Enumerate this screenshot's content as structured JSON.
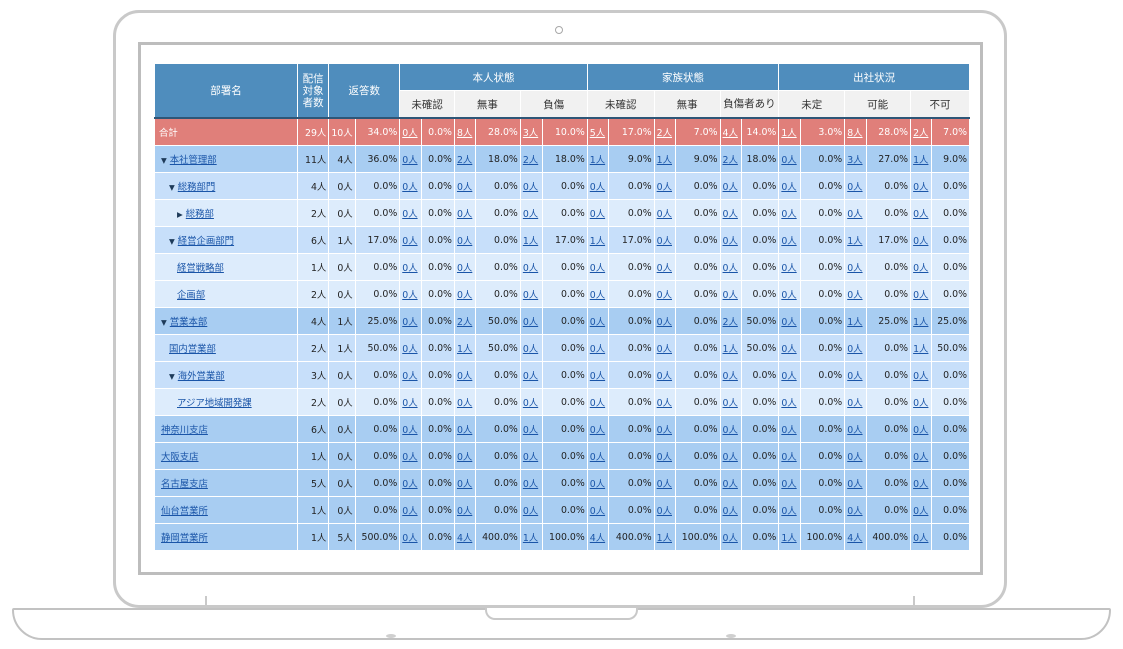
{
  "header": {
    "dept": "部署名",
    "target": "配信対象者数",
    "answers": "返答数",
    "groups": [
      {
        "label": "本人状態",
        "subs": [
          "未確認",
          "無事",
          "負傷"
        ]
      },
      {
        "label": "家族状態",
        "subs": [
          "未確認",
          "無事",
          "負傷者あり"
        ]
      },
      {
        "label": "出社状況",
        "subs": [
          "未定",
          "可能",
          "不可"
        ]
      }
    ]
  },
  "rows": [
    {
      "name": "合計",
      "link": false,
      "level": 0,
      "caret": "",
      "target": "29人",
      "ans_n": "10人",
      "ans_p": "34.0%",
      "cells": [
        [
          "0人",
          "0.0%"
        ],
        [
          "8人",
          "28.0%"
        ],
        [
          "3人",
          "10.0%"
        ],
        [
          "5人",
          "17.0%"
        ],
        [
          "2人",
          "7.0%"
        ],
        [
          "4人",
          "14.0%"
        ],
        [
          "1人",
          "3.0%"
        ],
        [
          "8人",
          "28.0%"
        ],
        [
          "2人",
          "7.0%"
        ]
      ]
    },
    {
      "name": "本社管理部",
      "link": true,
      "level": 1,
      "caret": "▼",
      "target": "11人",
      "ans_n": "4人",
      "ans_p": "36.0%",
      "cells": [
        [
          "0人",
          "0.0%"
        ],
        [
          "2人",
          "18.0%"
        ],
        [
          "2人",
          "18.0%"
        ],
        [
          "1人",
          "9.0%"
        ],
        [
          "1人",
          "9.0%"
        ],
        [
          "2人",
          "18.0%"
        ],
        [
          "0人",
          "0.0%"
        ],
        [
          "3人",
          "27.0%"
        ],
        [
          "1人",
          "9.0%"
        ]
      ]
    },
    {
      "name": "総務部門",
      "link": true,
      "level": 2,
      "caret": "▼",
      "target": "4人",
      "ans_n": "0人",
      "ans_p": "0.0%",
      "cells": [
        [
          "0人",
          "0.0%"
        ],
        [
          "0人",
          "0.0%"
        ],
        [
          "0人",
          "0.0%"
        ],
        [
          "0人",
          "0.0%"
        ],
        [
          "0人",
          "0.0%"
        ],
        [
          "0人",
          "0.0%"
        ],
        [
          "0人",
          "0.0%"
        ],
        [
          "0人",
          "0.0%"
        ],
        [
          "0人",
          "0.0%"
        ]
      ]
    },
    {
      "name": "総務部",
      "link": true,
      "level": 3,
      "caret": "▶",
      "target": "2人",
      "ans_n": "0人",
      "ans_p": "0.0%",
      "cells": [
        [
          "0人",
          "0.0%"
        ],
        [
          "0人",
          "0.0%"
        ],
        [
          "0人",
          "0.0%"
        ],
        [
          "0人",
          "0.0%"
        ],
        [
          "0人",
          "0.0%"
        ],
        [
          "0人",
          "0.0%"
        ],
        [
          "0人",
          "0.0%"
        ],
        [
          "0人",
          "0.0%"
        ],
        [
          "0人",
          "0.0%"
        ]
      ]
    },
    {
      "name": "経営企画部門",
      "link": true,
      "level": 2,
      "caret": "▼",
      "target": "6人",
      "ans_n": "1人",
      "ans_p": "17.0%",
      "cells": [
        [
          "0人",
          "0.0%"
        ],
        [
          "0人",
          "0.0%"
        ],
        [
          "1人",
          "17.0%"
        ],
        [
          "1人",
          "17.0%"
        ],
        [
          "0人",
          "0.0%"
        ],
        [
          "0人",
          "0.0%"
        ],
        [
          "0人",
          "0.0%"
        ],
        [
          "1人",
          "17.0%"
        ],
        [
          "0人",
          "0.0%"
        ]
      ]
    },
    {
      "name": "経営戦略部",
      "link": true,
      "level": 3,
      "caret": "",
      "target": "1人",
      "ans_n": "0人",
      "ans_p": "0.0%",
      "cells": [
        [
          "0人",
          "0.0%"
        ],
        [
          "0人",
          "0.0%"
        ],
        [
          "0人",
          "0.0%"
        ],
        [
          "0人",
          "0.0%"
        ],
        [
          "0人",
          "0.0%"
        ],
        [
          "0人",
          "0.0%"
        ],
        [
          "0人",
          "0.0%"
        ],
        [
          "0人",
          "0.0%"
        ],
        [
          "0人",
          "0.0%"
        ]
      ]
    },
    {
      "name": "企画部",
      "link": true,
      "level": 3,
      "caret": "",
      "target": "2人",
      "ans_n": "0人",
      "ans_p": "0.0%",
      "cells": [
        [
          "0人",
          "0.0%"
        ],
        [
          "0人",
          "0.0%"
        ],
        [
          "0人",
          "0.0%"
        ],
        [
          "0人",
          "0.0%"
        ],
        [
          "0人",
          "0.0%"
        ],
        [
          "0人",
          "0.0%"
        ],
        [
          "0人",
          "0.0%"
        ],
        [
          "0人",
          "0.0%"
        ],
        [
          "0人",
          "0.0%"
        ]
      ]
    },
    {
      "name": "営業本部",
      "link": true,
      "level": 1,
      "caret": "▼",
      "target": "4人",
      "ans_n": "1人",
      "ans_p": "25.0%",
      "cells": [
        [
          "0人",
          "0.0%"
        ],
        [
          "2人",
          "50.0%"
        ],
        [
          "0人",
          "0.0%"
        ],
        [
          "0人",
          "0.0%"
        ],
        [
          "0人",
          "0.0%"
        ],
        [
          "2人",
          "50.0%"
        ],
        [
          "0人",
          "0.0%"
        ],
        [
          "1人",
          "25.0%"
        ],
        [
          "1人",
          "25.0%"
        ]
      ]
    },
    {
      "name": "国内営業部",
      "link": true,
      "level": 2,
      "caret": "",
      "target": "2人",
      "ans_n": "1人",
      "ans_p": "50.0%",
      "cells": [
        [
          "0人",
          "0.0%"
        ],
        [
          "1人",
          "50.0%"
        ],
        [
          "0人",
          "0.0%"
        ],
        [
          "0人",
          "0.0%"
        ],
        [
          "0人",
          "0.0%"
        ],
        [
          "1人",
          "50.0%"
        ],
        [
          "0人",
          "0.0%"
        ],
        [
          "0人",
          "0.0%"
        ],
        [
          "1人",
          "50.0%"
        ]
      ]
    },
    {
      "name": "海外営業部",
      "link": true,
      "level": 2,
      "caret": "▼",
      "target": "3人",
      "ans_n": "0人",
      "ans_p": "0.0%",
      "cells": [
        [
          "0人",
          "0.0%"
        ],
        [
          "0人",
          "0.0%"
        ],
        [
          "0人",
          "0.0%"
        ],
        [
          "0人",
          "0.0%"
        ],
        [
          "0人",
          "0.0%"
        ],
        [
          "0人",
          "0.0%"
        ],
        [
          "0人",
          "0.0%"
        ],
        [
          "0人",
          "0.0%"
        ],
        [
          "0人",
          "0.0%"
        ]
      ]
    },
    {
      "name": "アジア地域開発課",
      "link": true,
      "level": 3,
      "caret": "",
      "target": "2人",
      "ans_n": "0人",
      "ans_p": "0.0%",
      "cells": [
        [
          "0人",
          "0.0%"
        ],
        [
          "0人",
          "0.0%"
        ],
        [
          "0人",
          "0.0%"
        ],
        [
          "0人",
          "0.0%"
        ],
        [
          "0人",
          "0.0%"
        ],
        [
          "0人",
          "0.0%"
        ],
        [
          "0人",
          "0.0%"
        ],
        [
          "0人",
          "0.0%"
        ],
        [
          "0人",
          "0.0%"
        ]
      ]
    },
    {
      "name": "神奈川支店",
      "link": true,
      "level": 1,
      "caret": "",
      "target": "6人",
      "ans_n": "0人",
      "ans_p": "0.0%",
      "cells": [
        [
          "0人",
          "0.0%"
        ],
        [
          "0人",
          "0.0%"
        ],
        [
          "0人",
          "0.0%"
        ],
        [
          "0人",
          "0.0%"
        ],
        [
          "0人",
          "0.0%"
        ],
        [
          "0人",
          "0.0%"
        ],
        [
          "0人",
          "0.0%"
        ],
        [
          "0人",
          "0.0%"
        ],
        [
          "0人",
          "0.0%"
        ]
      ]
    },
    {
      "name": "大阪支店",
      "link": true,
      "level": 1,
      "caret": "",
      "target": "1人",
      "ans_n": "0人",
      "ans_p": "0.0%",
      "cells": [
        [
          "0人",
          "0.0%"
        ],
        [
          "0人",
          "0.0%"
        ],
        [
          "0人",
          "0.0%"
        ],
        [
          "0人",
          "0.0%"
        ],
        [
          "0人",
          "0.0%"
        ],
        [
          "0人",
          "0.0%"
        ],
        [
          "0人",
          "0.0%"
        ],
        [
          "0人",
          "0.0%"
        ],
        [
          "0人",
          "0.0%"
        ]
      ]
    },
    {
      "name": "名古屋支店",
      "link": true,
      "level": 1,
      "caret": "",
      "target": "5人",
      "ans_n": "0人",
      "ans_p": "0.0%",
      "cells": [
        [
          "0人",
          "0.0%"
        ],
        [
          "0人",
          "0.0%"
        ],
        [
          "0人",
          "0.0%"
        ],
        [
          "0人",
          "0.0%"
        ],
        [
          "0人",
          "0.0%"
        ],
        [
          "0人",
          "0.0%"
        ],
        [
          "0人",
          "0.0%"
        ],
        [
          "0人",
          "0.0%"
        ],
        [
          "0人",
          "0.0%"
        ]
      ]
    },
    {
      "name": "仙台営業所",
      "link": true,
      "level": 1,
      "caret": "",
      "target": "1人",
      "ans_n": "0人",
      "ans_p": "0.0%",
      "cells": [
        [
          "0人",
          "0.0%"
        ],
        [
          "0人",
          "0.0%"
        ],
        [
          "0人",
          "0.0%"
        ],
        [
          "0人",
          "0.0%"
        ],
        [
          "0人",
          "0.0%"
        ],
        [
          "0人",
          "0.0%"
        ],
        [
          "0人",
          "0.0%"
        ],
        [
          "0人",
          "0.0%"
        ],
        [
          "0人",
          "0.0%"
        ]
      ]
    },
    {
      "name": "静岡営業所",
      "link": true,
      "level": 1,
      "caret": "",
      "target": "1人",
      "ans_n": "5人",
      "ans_p": "500.0%",
      "cells": [
        [
          "0人",
          "0.0%"
        ],
        [
          "4人",
          "400.0%"
        ],
        [
          "1人",
          "100.0%"
        ],
        [
          "4人",
          "400.0%"
        ],
        [
          "1人",
          "100.0%"
        ],
        [
          "0人",
          "0.0%"
        ],
        [
          "1人",
          "100.0%"
        ],
        [
          "4人",
          "400.0%"
        ],
        [
          "0人",
          "0.0%"
        ]
      ]
    }
  ]
}
